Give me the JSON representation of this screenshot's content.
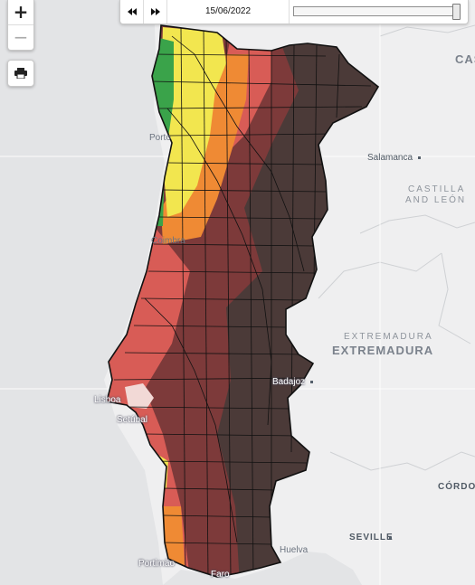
{
  "map": {
    "colors": {
      "sea": "#e6e7e9",
      "land": "#f1f1f2",
      "green": "#3aa34a",
      "yellow": "#f2e64f",
      "orange": "#ef8a34",
      "red": "#d85c56",
      "maroon": "#7d3a3a",
      "darkbrown": "#4b3a38"
    },
    "cities": {
      "porto": "Porto",
      "coimbra": "Coimbra",
      "lisboa": "Lisboa",
      "setubal": "Setúbal",
      "portimao": "Portimão",
      "faro": "Faro",
      "salamanca": "Salamanca",
      "badajoz": "Badajoz",
      "huelva": "Huelva",
      "seville": "SEVILLE",
      "cordoba": "CÓRDO"
    },
    "regions": {
      "castilla_line1": "CASTILLA",
      "castilla_line2": "AND LEÓN",
      "castilla_corner": "CAS",
      "extremadura_small": "EXTREMADURA",
      "extremadura_big": "EXTREMADURA"
    }
  },
  "controls": {
    "zoom_in": "+",
    "zoom_out": "−",
    "print_icon": "printer-icon",
    "step_back_icon": "step-back-icon",
    "step_forward_icon": "step-forward-icon"
  },
  "timebar": {
    "date": "15/06/2022",
    "position_fraction": 1.0
  }
}
